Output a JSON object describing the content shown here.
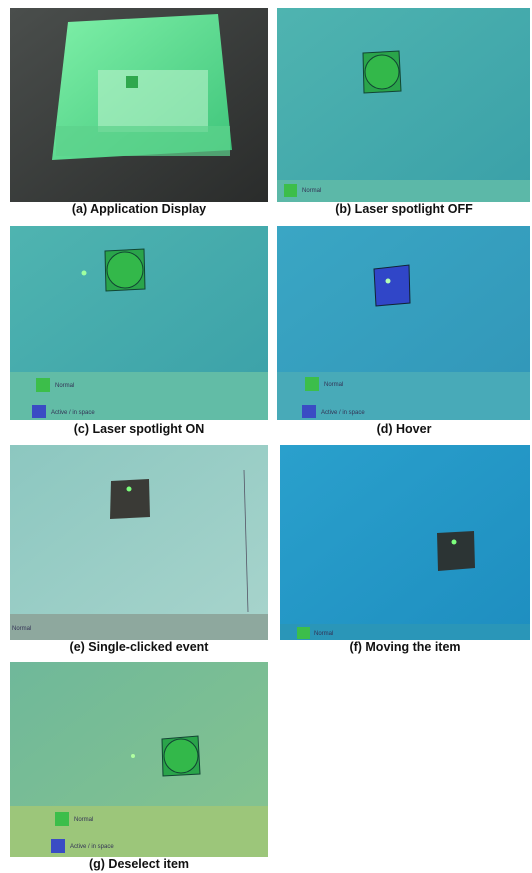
{
  "panels": [
    {
      "caption": "(a) Application Display"
    },
    {
      "caption": "(b) Laser spotlight OFF",
      "labels": [
        "Normal"
      ]
    },
    {
      "caption": "(c) Laser spotlight ON",
      "labels": [
        "Normal",
        "Active / in space"
      ]
    },
    {
      "caption": "(d) Hover",
      "labels": [
        "Normal",
        "Active / in space"
      ]
    },
    {
      "caption": "(e) Single-clicked event",
      "labels": [
        "Normal"
      ]
    },
    {
      "caption": "(f) Moving the item",
      "labels": [
        "Normal"
      ]
    },
    {
      "caption": "(g) Deselect item",
      "labels": [
        "Normal",
        "Active / in space"
      ]
    }
  ]
}
